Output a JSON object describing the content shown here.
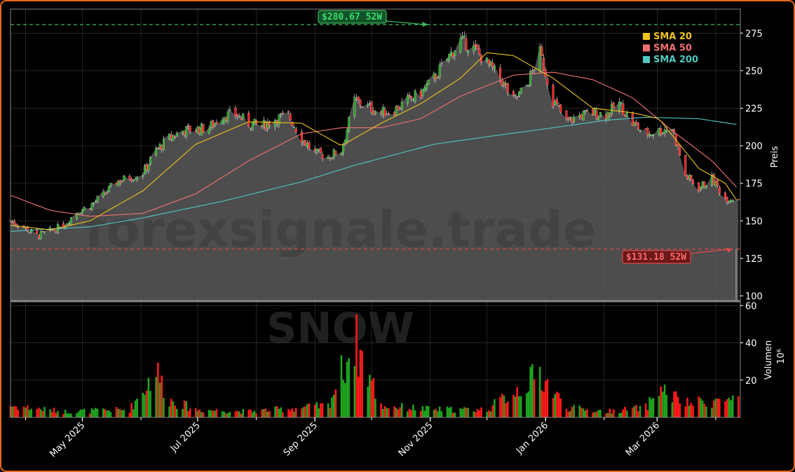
{
  "chart_data": {
    "type": "candlestick",
    "watermark": {
      "line1": "forexsignale.trade",
      "line2": "SNOW"
    },
    "colors": {
      "up": "#1fa51f",
      "down": "#ff1a1a",
      "area": "#5a5a5a",
      "sma20": "#f0c419",
      "sma50": "#f07070",
      "sma200": "#4fc8c0",
      "high_line": "#3dbb5c",
      "low_line": "#e04848",
      "high_box_fill": "#12522a",
      "low_box_fill": "#6a1818",
      "high_text": "#3ddc6a",
      "low_text": "#ff6a6a"
    },
    "price_axis": {
      "label": "Preis",
      "ylim": [
        97,
        291
      ],
      "ticks": [
        100,
        125,
        150,
        175,
        200,
        225,
        250,
        275
      ]
    },
    "volume_axis": {
      "label": "Volumen",
      "unit": "10⁶",
      "ylim": [
        0,
        62
      ],
      "ticks": [
        20,
        40,
        60
      ]
    },
    "x_axis": {
      "ticks": [
        "May 2025",
        "Jul 2025",
        "Sep 2025",
        "Nov 2025",
        "Jan 2026",
        "Mar 2026"
      ],
      "range": [
        "2025-03-24",
        "2026-04-14"
      ]
    },
    "legend": {
      "position": "top-right",
      "items": [
        {
          "label": "SMA 20",
          "color": "#f0c419"
        },
        {
          "label": "SMA 50",
          "color": "#f07070"
        },
        {
          "label": "SMA 200",
          "color": "#4fc8c0"
        }
      ]
    },
    "annotations": {
      "high": {
        "label": "$280.67 52W",
        "value": 280.67,
        "date": "2025-10-31"
      },
      "low": {
        "label": "$131.18 52W",
        "value": 131.18,
        "date": "2026-04-10"
      }
    },
    "price_path": [
      [
        "2025-03-24",
        150
      ],
      [
        "2025-03-31",
        146
      ],
      [
        "2025-04-07",
        140
      ],
      [
        "2025-04-14",
        143
      ],
      [
        "2025-04-21",
        147
      ],
      [
        "2025-04-28",
        156
      ],
      [
        "2025-05-05",
        160
      ],
      [
        "2025-05-12",
        167
      ],
      [
        "2025-05-19",
        176
      ],
      [
        "2025-05-26",
        179
      ],
      [
        "2025-06-02",
        182
      ],
      [
        "2025-06-09",
        197
      ],
      [
        "2025-06-16",
        205
      ],
      [
        "2025-06-23",
        210
      ],
      [
        "2025-06-30",
        211
      ],
      [
        "2025-07-07",
        212
      ],
      [
        "2025-07-14",
        220
      ],
      [
        "2025-07-21",
        221
      ],
      [
        "2025-07-28",
        215
      ],
      [
        "2025-08-04",
        213
      ],
      [
        "2025-08-11",
        218
      ],
      [
        "2025-08-18",
        220
      ],
      [
        "2025-08-25",
        205
      ],
      [
        "2025-09-01",
        195
      ],
      [
        "2025-09-08",
        193
      ],
      [
        "2025-09-15",
        197
      ],
      [
        "2025-09-22",
        230
      ],
      [
        "2025-09-29",
        226
      ],
      [
        "2025-10-06",
        222
      ],
      [
        "2025-10-13",
        224
      ],
      [
        "2025-10-20",
        230
      ],
      [
        "2025-10-27",
        235
      ],
      [
        "2025-11-03",
        245
      ],
      [
        "2025-11-10",
        258
      ],
      [
        "2025-11-17",
        270
      ],
      [
        "2025-11-24",
        265
      ],
      [
        "2025-12-01",
        255
      ],
      [
        "2025-12-08",
        245
      ],
      [
        "2025-12-15",
        230
      ],
      [
        "2025-12-22",
        240
      ],
      [
        "2025-12-29",
        262
      ],
      [
        "2026-01-05",
        230
      ],
      [
        "2026-01-12",
        216
      ],
      [
        "2026-01-19",
        220
      ],
      [
        "2026-01-26",
        222
      ],
      [
        "2026-02-02",
        221
      ],
      [
        "2026-02-09",
        228
      ],
      [
        "2026-02-16",
        215
      ],
      [
        "2026-02-23",
        208
      ],
      [
        "2026-03-02",
        210
      ],
      [
        "2026-03-09",
        212
      ],
      [
        "2026-03-16",
        180
      ],
      [
        "2026-03-23",
        172
      ],
      [
        "2026-03-30",
        178
      ],
      [
        "2026-04-06",
        165
      ]
    ],
    "volume_path": [
      [
        "2025-03-24",
        6
      ],
      [
        "2025-04-21",
        3
      ],
      [
        "2025-05-26",
        4
      ],
      [
        "2025-06-09",
        24
      ],
      [
        "2025-06-16",
        9
      ],
      [
        "2025-06-30",
        4
      ],
      [
        "2025-07-28",
        3
      ],
      [
        "2025-08-25",
        5
      ],
      [
        "2025-09-08",
        6
      ],
      [
        "2025-09-22",
        40
      ],
      [
        "2025-10-06",
        6
      ],
      [
        "2025-11-03",
        4
      ],
      [
        "2025-12-01",
        4
      ],
      [
        "2025-12-29",
        22
      ],
      [
        "2026-01-12",
        5
      ],
      [
        "2026-02-02",
        3
      ],
      [
        "2026-02-23",
        5
      ],
      [
        "2026-03-02",
        15
      ],
      [
        "2026-03-16",
        7
      ],
      [
        "2026-04-06",
        9
      ]
    ],
    "sma20": [
      [
        "2025-03-24",
        147
      ],
      [
        "2025-04-14",
        144
      ],
      [
        "2025-05-05",
        150
      ],
      [
        "2025-06-02",
        170
      ],
      [
        "2025-06-30",
        201
      ],
      [
        "2025-07-28",
        216
      ],
      [
        "2025-08-25",
        215
      ],
      [
        "2025-09-15",
        200
      ],
      [
        "2025-10-06",
        215
      ],
      [
        "2025-10-27",
        228
      ],
      [
        "2025-11-17",
        245
      ],
      [
        "2025-12-01",
        262
      ],
      [
        "2025-12-15",
        260
      ],
      [
        "2026-01-05",
        245
      ],
      [
        "2026-01-26",
        225
      ],
      [
        "2026-02-16",
        222
      ],
      [
        "2026-03-02",
        218
      ],
      [
        "2026-03-23",
        185
      ],
      [
        "2026-04-06",
        175
      ],
      [
        "2026-04-13",
        162
      ]
    ],
    "sma50": [
      [
        "2025-03-24",
        167
      ],
      [
        "2025-04-14",
        157
      ],
      [
        "2025-05-05",
        153
      ],
      [
        "2025-06-02",
        155
      ],
      [
        "2025-06-30",
        168
      ],
      [
        "2025-07-28",
        190
      ],
      [
        "2025-08-25",
        208
      ],
      [
        "2025-09-15",
        212
      ],
      [
        "2025-10-06",
        212
      ],
      [
        "2025-10-27",
        218
      ],
      [
        "2025-11-17",
        233
      ],
      [
        "2025-12-15",
        247
      ],
      [
        "2026-01-05",
        249
      ],
      [
        "2026-01-26",
        244
      ],
      [
        "2026-02-16",
        232
      ],
      [
        "2026-03-09",
        210
      ],
      [
        "2026-03-30",
        190
      ],
      [
        "2026-04-13",
        171
      ]
    ],
    "sma200": [
      [
        "2025-03-24",
        143
      ],
      [
        "2025-05-05",
        146
      ],
      [
        "2025-06-02",
        152
      ],
      [
        "2025-07-14",
        163
      ],
      [
        "2025-08-25",
        176
      ],
      [
        "2025-09-22",
        187
      ],
      [
        "2025-11-03",
        201
      ],
      [
        "2025-12-01",
        206
      ],
      [
        "2026-01-05",
        212
      ],
      [
        "2026-02-02",
        217
      ],
      [
        "2026-02-23",
        219
      ],
      [
        "2026-03-23",
        218
      ],
      [
        "2026-04-13",
        214
      ]
    ]
  }
}
